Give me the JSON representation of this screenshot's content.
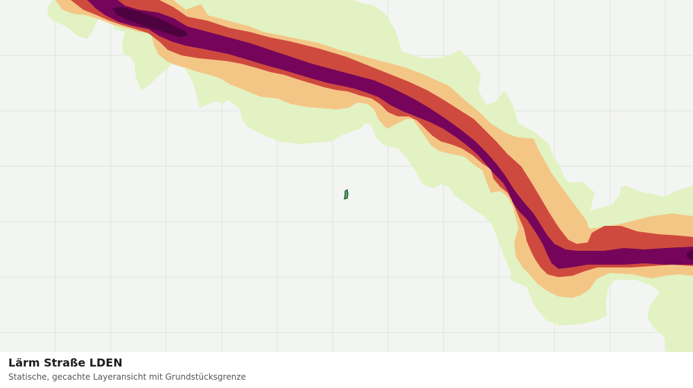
{
  "layer": {
    "title": "Lärm Straße LDEN",
    "subtitle": "Statische, gecachte Layeransicht mit Grundstücksgrenze"
  },
  "map": {
    "background_color": "#f3f5f2",
    "grid_color": "#dfe2df",
    "noise_band_colors": [
      "#e2f2c2",
      "#f4c686",
      "#cf4a3e",
      "#75045a",
      "#4e0340"
    ],
    "parcel_outline_color": "#1e5a32",
    "parcel_fill_color": "#5cb06c"
  }
}
